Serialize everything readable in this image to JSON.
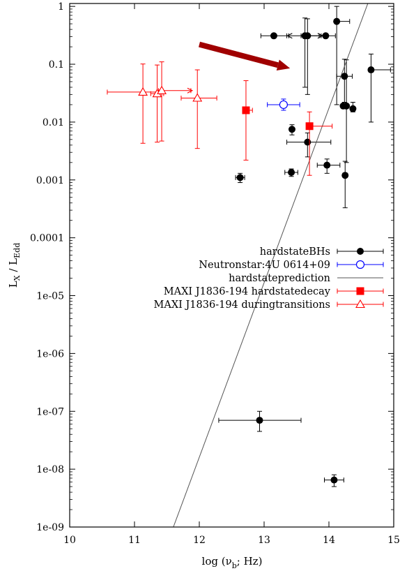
{
  "chart_data": {
    "type": "scatter",
    "xlabel": "log (ν_b; Hz)",
    "ylabel": "L_X / L_Edd",
    "xlim": [
      10,
      15
    ],
    "ylim_log10": [
      -9,
      0.05
    ],
    "y_scale": "log",
    "grid": false,
    "legend_position": "right",
    "x_ticks": [
      10,
      11,
      12,
      13,
      14,
      15
    ],
    "x_tick_labels": [
      "10",
      "11",
      "12",
      "13",
      "14",
      "15"
    ],
    "y_ticks_log10": [
      0,
      -1,
      -2,
      -3,
      -4,
      -5,
      -6,
      -7,
      -8,
      -9
    ],
    "y_tick_labels": [
      "1",
      "0.1",
      "0.01",
      "0.001",
      "0.0001",
      "1e-05",
      "1e-06",
      "1e-07",
      "1e-08",
      "1e-09"
    ],
    "series": [
      {
        "name": "hardstateBHs",
        "color": "#000000",
        "marker": "filled-circle",
        "points": [
          {
            "x": 13.15,
            "y": 0.31,
            "xerr": [
              0.2,
              0.2
            ]
          },
          {
            "x": 13.63,
            "y": 0.31,
            "xerr": [
              0.25,
              0.25
            ],
            "yerr": [
              0.27,
              0.32
            ],
            "x_lower_limit": true,
            "x_upper_limit": true
          },
          {
            "x": 13.67,
            "y": 0.31,
            "xerr": [
              0.1,
              0.3
            ],
            "yerr": [
              0.28,
              0.3
            ]
          },
          {
            "x": 13.95,
            "y": 0.31,
            "xerr": [
              0.1,
              0.15
            ]
          },
          {
            "x": 14.12,
            "y": 0.55,
            "xerr": [
              0,
              0.2
            ],
            "yerr": [
              0.53,
              0.45
            ]
          },
          {
            "x": 14.24,
            "y": 0.062,
            "xerr": [
              0.12,
              0.12
            ],
            "yerr": [
              0.04,
              0.06
            ]
          },
          {
            "x": 14.22,
            "y": 0.019,
            "xerr": [
              0,
              0
            ]
          },
          {
            "x": 14.27,
            "y": 0.019,
            "xerr": [
              0,
              0
            ],
            "yerr": [
              0.017,
              0.1
            ]
          },
          {
            "x": 14.37,
            "y": 0.017,
            "xerr": [
              0,
              0
            ],
            "yerr": [
              0.002,
              0.005
            ]
          },
          {
            "x": 14.65,
            "y": 0.08,
            "xerr": [
              0,
              0.3
            ],
            "yerr": [
              0.07,
              0.07
            ]
          },
          {
            "x": 13.43,
            "y": 0.0075,
            "yerr": [
              0.0015,
              0.0015
            ]
          },
          {
            "x": 13.67,
            "y": 0.0045,
            "xerr": [
              0.32,
              0.36
            ],
            "yerr": [
              0.002,
              0.002
            ]
          },
          {
            "x": 13.97,
            "y": 0.0018,
            "xerr": [
              0.15,
              0.2
            ],
            "yerr": [
              0.0005,
              0.0005
            ]
          },
          {
            "x": 14.25,
            "y": 0.0012,
            "xerr": [
              0,
              0
            ],
            "yerr": [
              0.00087,
              0.0009
            ]
          },
          {
            "x": 13.42,
            "y": 0.00135,
            "xerr": [
              0.1,
              0.1
            ],
            "yerr": [
              0.0002,
              0.0002
            ]
          },
          {
            "x": 12.63,
            "y": 0.0011,
            "xerr": [
              0.07,
              0.07
            ],
            "yerr": [
              0.0002,
              0.0002
            ]
          },
          {
            "x": 12.93,
            "y": 7e-08,
            "xerr": [
              0.63,
              0.64
            ],
            "yerr": [
              2.5e-08,
              3e-08
            ]
          },
          {
            "x": 14.08,
            "y": 6.5e-09,
            "xerr": [
              0.15,
              0.15
            ],
            "yerr": [
              1.5e-09,
              1.5e-09
            ]
          }
        ]
      },
      {
        "name": "Neutronstar:4U 0614+09",
        "color": "#0000ff",
        "marker": "open-circle",
        "points": [
          {
            "x": 13.3,
            "y": 0.02,
            "xerr": [
              0.25,
              0.25
            ],
            "yerr": [
              0.004,
              0.005
            ]
          }
        ]
      },
      {
        "name": "hardstateprediction",
        "color": "#555555",
        "marker": "line",
        "line": [
          {
            "x": 11.6,
            "y": 1e-09
          },
          {
            "x": 14.6,
            "y": 1.12
          }
        ]
      },
      {
        "name": "MAXI J1836-194 hardstatedecay",
        "color": "#ff0000",
        "marker": "filled-square",
        "points": [
          {
            "x": 12.72,
            "y": 0.016,
            "xerr": [
              0,
              0.1
            ],
            "yerr": [
              0.0138,
              0.036
            ]
          },
          {
            "x": 13.7,
            "y": 0.0085,
            "xerr": [
              0,
              0.35
            ],
            "yerr": [
              0.0073,
              0.0065
            ]
          }
        ]
      },
      {
        "name": "MAXI J1836-194 duringtransitions",
        "color": "#ff0000",
        "marker": "open-triangle",
        "points": [
          {
            "x": 11.13,
            "y": 0.033,
            "xerr": [
              0.55,
              0.25
            ],
            "yerr": [
              0.0287,
              0.068
            ]
          },
          {
            "x": 11.35,
            "y": 0.031,
            "xerr": [
              0.1,
              0.1
            ],
            "yerr": [
              0.0265,
              0.066
            ]
          },
          {
            "x": 11.42,
            "y": 0.035,
            "xerr": [
              0.05,
              0.45
            ],
            "yerr": [
              0.0303,
              0.075
            ],
            "x_lower_limit": true
          },
          {
            "x": 11.97,
            "y": 0.026,
            "xerr": [
              0.25,
              0.3
            ],
            "yerr": [
              0.0225,
              0.054
            ]
          }
        ]
      }
    ],
    "annotations": [
      {
        "type": "arrow",
        "color": "#a00000",
        "from": {
          "x": 12.0,
          "y": 0.22
        },
        "to": {
          "x": 13.4,
          "y": 0.085
        }
      }
    ]
  }
}
